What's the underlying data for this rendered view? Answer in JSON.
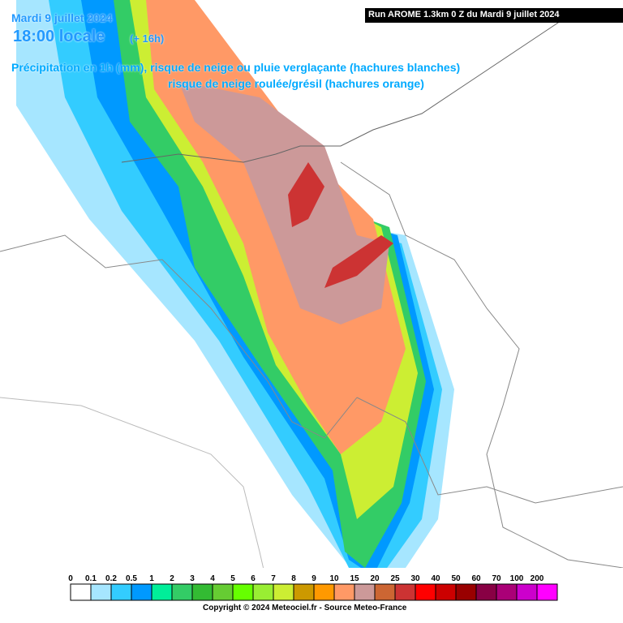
{
  "header": {
    "date": "Mardi 9 juillet 2024",
    "time": "18:00 locale",
    "lead": "(+ 16h)",
    "line1": "Précipitation en 1h (mm), risque de neige ou pluie verglaçante (hachures blanches)",
    "line2": "risque de neige roulée/grésil (hachures orange)",
    "run": "Run AROME 1.3km 0 Z du Mardi 9 juillet 2024"
  },
  "legend": {
    "items": [
      {
        "label": "0",
        "color": "#ffffff"
      },
      {
        "label": "0.1",
        "color": "#a6e6ff"
      },
      {
        "label": "0.2",
        "color": "#33ccff"
      },
      {
        "label": "0.5",
        "color": "#0099ff"
      },
      {
        "label": "1",
        "color": "#00ee99"
      },
      {
        "label": "2",
        "color": "#33cc66"
      },
      {
        "label": "3",
        "color": "#33bb33"
      },
      {
        "label": "4",
        "color": "#66cc33"
      },
      {
        "label": "5",
        "color": "#66ff00"
      },
      {
        "label": "6",
        "color": "#99ee33"
      },
      {
        "label": "7",
        "color": "#ccee33"
      },
      {
        "label": "8",
        "color": "#cc9900"
      },
      {
        "label": "9",
        "color": "#ff9900"
      },
      {
        "label": "10",
        "color": "#ff9966"
      },
      {
        "label": "15",
        "color": "#cc9999"
      },
      {
        "label": "20",
        "color": "#cc6633"
      },
      {
        "label": "25",
        "color": "#cc3333"
      },
      {
        "label": "30",
        "color": "#ff0000"
      },
      {
        "label": "40",
        "color": "#cc0000"
      },
      {
        "label": "50",
        "color": "#990000"
      },
      {
        "label": "60",
        "color": "#880044"
      },
      {
        "label": "70",
        "color": "#aa0077"
      },
      {
        "label": "100",
        "color": "#cc00cc"
      },
      {
        "label": "200",
        "color": "#ff00ff"
      }
    ]
  },
  "footer": {
    "copyright": "Copyright © 2024 Meteociel.fr - Source Meteo-France"
  }
}
